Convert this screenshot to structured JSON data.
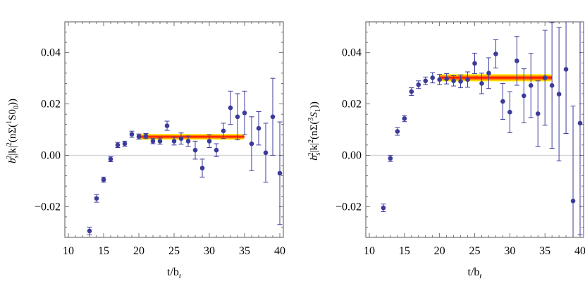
{
  "chart_data": [
    {
      "type": "scatter",
      "xlabel": "t/b",
      "xlabel_sub": "t",
      "ylabel": {
        "b": "b",
        "sub": "s",
        "sup": "2",
        "mid": "|k|",
        "mid_sup": "2",
        "arg": "(nΣ(",
        "arg_sup": "1",
        "arg_tail": "S0",
        "arg_sub": "0",
        "close": "))"
      },
      "xlim": [
        9.5,
        40.5
      ],
      "ylim": [
        -0.032,
        0.052
      ],
      "xticks": [
        10,
        15,
        20,
        25,
        30,
        35,
        40
      ],
      "yticks": [
        -0.02,
        0.0,
        0.02,
        0.04
      ],
      "ytick_labels": [
        "−0.02",
        "0.00",
        "0.02",
        "0.04"
      ],
      "fit_band": {
        "x": [
          20,
          35
        ],
        "y": 0.0072,
        "half_width": 0.0011
      },
      "points": [
        {
          "x": 13,
          "y": -0.0295,
          "err": 0.0015
        },
        {
          "x": 14,
          "y": -0.0168,
          "err": 0.0015
        },
        {
          "x": 15,
          "y": -0.0095,
          "err": 0.001
        },
        {
          "x": 16,
          "y": -0.0015,
          "err": 0.001
        },
        {
          "x": 17,
          "y": 0.004,
          "err": 0.001
        },
        {
          "x": 18,
          "y": 0.0045,
          "err": 0.001
        },
        {
          "x": 19,
          "y": 0.0082,
          "err": 0.0012
        },
        {
          "x": 20,
          "y": 0.0073,
          "err": 0.001
        },
        {
          "x": 21,
          "y": 0.0075,
          "err": 0.001
        },
        {
          "x": 22,
          "y": 0.0055,
          "err": 0.001
        },
        {
          "x": 23,
          "y": 0.0055,
          "err": 0.0012
        },
        {
          "x": 24,
          "y": 0.0115,
          "err": 0.0018
        },
        {
          "x": 25,
          "y": 0.0055,
          "err": 0.0015
        },
        {
          "x": 26,
          "y": 0.0065,
          "err": 0.0022
        },
        {
          "x": 27,
          "y": 0.0055,
          "err": 0.002
        },
        {
          "x": 28,
          "y": 0.002,
          "err": 0.0035
        },
        {
          "x": 29,
          "y": -0.005,
          "err": 0.0035
        },
        {
          "x": 30,
          "y": 0.0055,
          "err": 0.0025
        },
        {
          "x": 31,
          "y": 0.002,
          "err": 0.0025
        },
        {
          "x": 32,
          "y": 0.0095,
          "err": 0.003
        },
        {
          "x": 33,
          "y": 0.0185,
          "err": 0.0065
        },
        {
          "x": 34,
          "y": 0.015,
          "err": 0.009
        },
        {
          "x": 35,
          "y": 0.0165,
          "err": 0.0085
        },
        {
          "x": 36,
          "y": 0.0045,
          "err": 0.0105
        },
        {
          "x": 37,
          "y": 0.0105,
          "err": 0.0065
        },
        {
          "x": 38,
          "y": 0.001,
          "err": 0.0115
        },
        {
          "x": 39,
          "y": 0.015,
          "err": 0.015
        },
        {
          "x": 40,
          "y": -0.007,
          "err": 0.02
        }
      ]
    },
    {
      "type": "scatter",
      "xlabel": "t/b",
      "xlabel_sub": "t",
      "ylabel": {
        "b": "b",
        "sub": "s",
        "sup": "2",
        "mid": "|k|",
        "mid_sup": "2",
        "arg": "(nΣ(",
        "arg_sup": "3",
        "arg_tail": "S",
        "arg_sub": "1",
        "close": "))"
      },
      "xlim": [
        9.5,
        40.5
      ],
      "ylim": [
        -0.032,
        0.052
      ],
      "xticks": [
        10,
        15,
        20,
        25,
        30,
        35,
        40
      ],
      "yticks": [
        -0.02,
        0.0,
        0.02,
        0.04
      ],
      "ytick_labels": [
        "−0.02",
        "0.00",
        "0.02",
        "0.04"
      ],
      "fit_band": {
        "x": [
          20,
          36
        ],
        "y": 0.0302,
        "half_width": 0.0014
      },
      "points": [
        {
          "x": 12,
          "y": -0.0205,
          "err": 0.0015
        },
        {
          "x": 13,
          "y": -0.0012,
          "err": 0.0012
        },
        {
          "x": 14,
          "y": 0.0093,
          "err": 0.0015
        },
        {
          "x": 15,
          "y": 0.0143,
          "err": 0.0012
        },
        {
          "x": 16,
          "y": 0.0248,
          "err": 0.0015
        },
        {
          "x": 17,
          "y": 0.0275,
          "err": 0.0015
        },
        {
          "x": 18,
          "y": 0.029,
          "err": 0.0015
        },
        {
          "x": 19,
          "y": 0.0302,
          "err": 0.002
        },
        {
          "x": 20,
          "y": 0.0295,
          "err": 0.002
        },
        {
          "x": 21,
          "y": 0.0298,
          "err": 0.002
        },
        {
          "x": 22,
          "y": 0.029,
          "err": 0.002
        },
        {
          "x": 23,
          "y": 0.0288,
          "err": 0.0025
        },
        {
          "x": 24,
          "y": 0.0295,
          "err": 0.003
        },
        {
          "x": 25,
          "y": 0.0358,
          "err": 0.004
        },
        {
          "x": 26,
          "y": 0.028,
          "err": 0.004
        },
        {
          "x": 27,
          "y": 0.032,
          "err": 0.006
        },
        {
          "x": 28,
          "y": 0.0395,
          "err": 0.0055
        },
        {
          "x": 29,
          "y": 0.021,
          "err": 0.007
        },
        {
          "x": 30,
          "y": 0.0168,
          "err": 0.008
        },
        {
          "x": 31,
          "y": 0.0368,
          "err": 0.0095
        },
        {
          "x": 32,
          "y": 0.0232,
          "err": 0.0105
        },
        {
          "x": 33,
          "y": 0.0272,
          "err": 0.0125
        },
        {
          "x": 34,
          "y": 0.0162,
          "err": 0.0128
        },
        {
          "x": 35,
          "y": 0.0302,
          "err": 0.0185
        },
        {
          "x": 36,
          "y": 0.0272,
          "err": 0.0245
        },
        {
          "x": 37,
          "y": 0.0238,
          "err": 0.026
        },
        {
          "x": 38,
          "y": 0.0335,
          "err": 0.025
        },
        {
          "x": 39,
          "y": -0.0178,
          "err": 0.037
        },
        {
          "x": 40,
          "y": 0.0125,
          "err": 0.0435
        }
      ]
    }
  ]
}
